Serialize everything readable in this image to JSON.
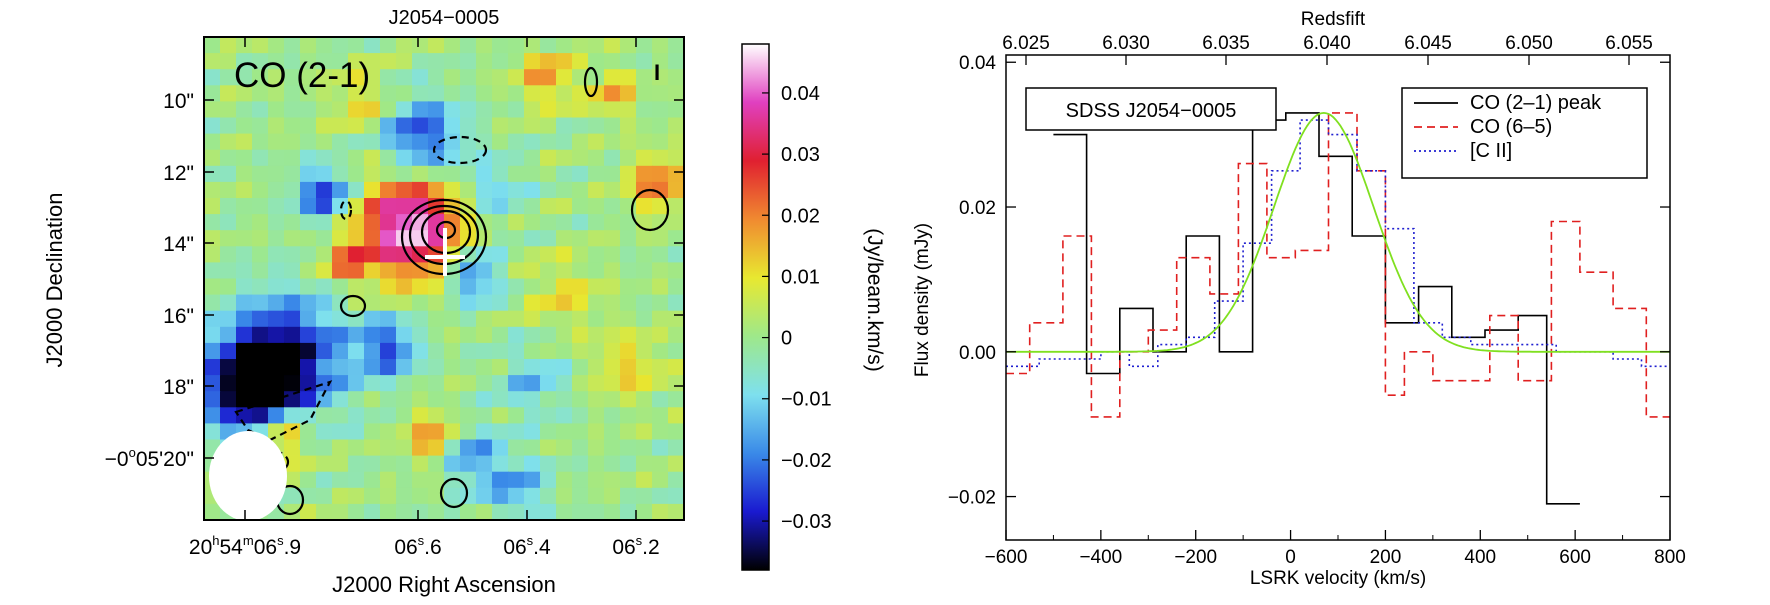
{
  "chart_data": [
    {
      "type": "heatmap",
      "title": "J2054−0005",
      "panel_label": "CO (2-1)",
      "beam_marker": "I",
      "xlabel": "J2000 Right Ascension",
      "ylabel": "J2000 Declination",
      "x_ticks": [
        {
          "main": "20",
          "sup1": "h",
          "mid": "54",
          "sup2": "m",
          "main2": "06",
          "sup3": "s",
          "tail": ".9"
        },
        {
          "main": "06",
          "sup3": "s",
          "tail": ".6"
        },
        {
          "main": "06",
          "sup3": "s",
          "tail": ".4"
        },
        {
          "main": "06",
          "sup3": "s",
          "tail": ".2"
        }
      ],
      "y_ticks": [
        "10\"",
        "12\"",
        "14\"",
        "16\"",
        "18\""
      ],
      "y_tick_last": {
        "pre": "−0",
        "sup1": "o",
        "mid": "05'20\""
      },
      "grid": false,
      "colorbar": {
        "label": "(Jy/beam.km/s)",
        "range": [
          -0.038,
          0.048
        ],
        "ticks": [
          "0.04",
          "0.03",
          "0.02",
          "0.01",
          "0",
          "−0.01",
          "−0.02",
          "−0.03"
        ],
        "tick_values": [
          0.04,
          0.03,
          0.02,
          0.01,
          0,
          -0.01,
          -0.02,
          -0.03
        ],
        "colors": [
          "#000000",
          "#1a1ad0",
          "#3a8ae8",
          "#7ee0ee",
          "#9ee88a",
          "#e8e830",
          "#f08a30",
          "#e02030",
          "#e040c0",
          "#ffffff"
        ]
      }
    },
    {
      "type": "line",
      "title": "",
      "box_label": "SDSS J2054−0005",
      "xlabel": "LSRK velocity (km/s)",
      "ylabel": "Flux density (mJy)",
      "top_axis_label": "Redsfift",
      "xlim": [
        -600,
        800
      ],
      "ylim": [
        -0.026,
        0.041
      ],
      "x_ticks": [
        "−600",
        "−400",
        "−200",
        "0",
        "200",
        "400",
        "600",
        "800"
      ],
      "y_ticks": [
        "0.04",
        "0.02",
        "0.00",
        "−0.02"
      ],
      "top_ticks": [
        "6.025",
        "6.030",
        "6.035",
        "6.040",
        "6.045",
        "6.050",
        "6.055"
      ],
      "legend_position": "top-right",
      "grid": false,
      "series": [
        {
          "name": "CO (2–1) peak",
          "color": "#000000",
          "style": "solid",
          "step_edges": [
            -500,
            -430,
            -360,
            -290,
            -220,
            -150,
            -80,
            -10,
            60,
            130,
            200,
            270,
            340,
            410,
            480,
            540,
            610
          ],
          "values": [
            0.03,
            -0.003,
            0.006,
            0.0,
            0.016,
            0.0,
            0.032,
            0.033,
            0.027,
            0.016,
            0.004,
            0.009,
            0.002,
            0.003,
            0.005,
            -0.021
          ]
        },
        {
          "name": "CO (6–5)",
          "color": "#e02020",
          "style": "dashed",
          "step_edges": [
            -600,
            -550,
            -480,
            -420,
            -360,
            -300,
            -240,
            -170,
            -110,
            -50,
            10,
            80,
            140,
            200,
            240,
            300,
            360,
            420,
            480,
            550,
            610,
            680,
            750,
            800
          ],
          "values": [
            -0.003,
            0.004,
            0.016,
            -0.009,
            0.0,
            0.003,
            0.013,
            0.008,
            0.026,
            0.013,
            0.014,
            0.033,
            0.025,
            -0.006,
            0.0,
            -0.004,
            -0.004,
            0.005,
            -0.004,
            0.018,
            0.011,
            0.006,
            -0.009
          ]
        },
        {
          "name": "[C II]",
          "color": "#2020d0",
          "style": "dotted",
          "step_edges": [
            -600,
            -530,
            -460,
            -400,
            -340,
            -280,
            -220,
            -160,
            -100,
            -40,
            20,
            80,
            140,
            200,
            260,
            320,
            380,
            440,
            500,
            560,
            620,
            680,
            740,
            800
          ],
          "values": [
            -0.002,
            -0.001,
            -0.001,
            0.0,
            -0.002,
            0.001,
            0.002,
            0.007,
            0.015,
            0.025,
            0.032,
            0.03,
            0.025,
            0.017,
            0.004,
            0.002,
            0.001,
            0.001,
            0.001,
            0.0,
            0.0,
            -0.001,
            -0.002
          ]
        },
        {
          "name": "Gaussian fit",
          "color": "#80e020",
          "style": "solid",
          "gaussian": {
            "amplitude": 0.033,
            "center": 70,
            "sigma": 105
          }
        }
      ]
    }
  ]
}
